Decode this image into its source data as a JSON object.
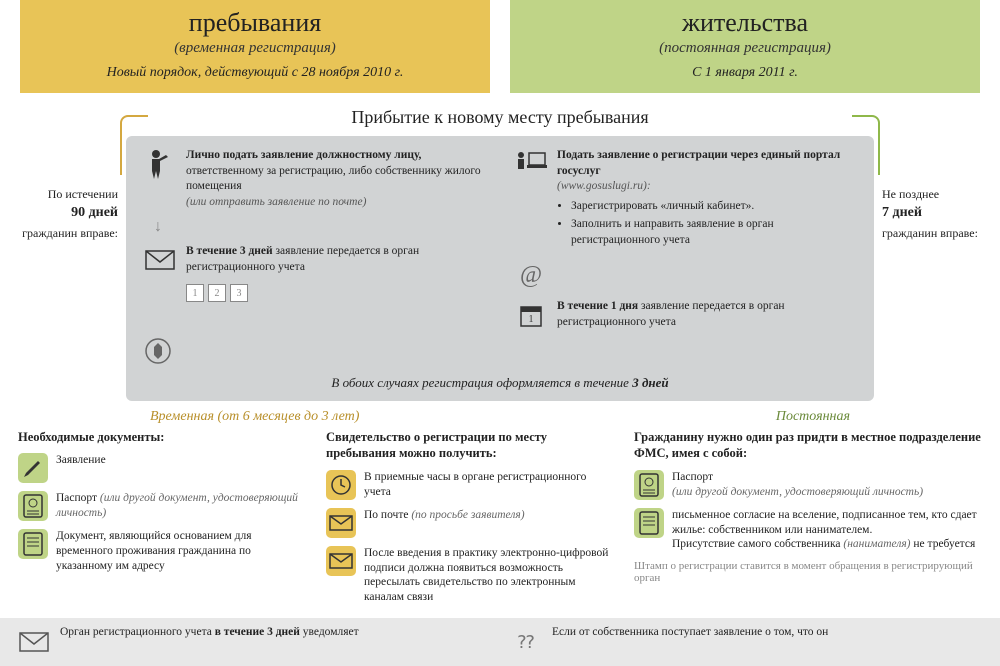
{
  "colors": {
    "yellow": "#e8c457",
    "green": "#bfd487",
    "gray_box": "#d1d3d4",
    "gray_footer": "#e8e8e8",
    "arrow_yellow": "#d4a840",
    "arrow_green": "#8fb84a",
    "text": "#222222",
    "muted": "#666666"
  },
  "headers": {
    "left": {
      "title": "пребывания",
      "subtitle": "(временная регистрация)",
      "date": "Новый порядок, действующий с 28 ноября 2010 г."
    },
    "right": {
      "title": "жительства",
      "subtitle": "(постоянная регистрация)",
      "date": "С 1 января 2011 г."
    }
  },
  "section_title": "Прибытие к новому месту пребывания",
  "side_left": {
    "pre": "По истечении",
    "days": "90 дней",
    "post": "гражданин вправе:"
  },
  "side_right": {
    "pre": "Не позднее",
    "days": "7 дней",
    "post": "гражданин вправе:"
  },
  "gray": {
    "left": {
      "step1_bold": "Лично подать заявление должностному лицу,",
      "step1_rest": "ответственному за регистрацию, либо собственнику жилого помещения",
      "step1_it": "(или отправить заявление по почте)",
      "step2_bold": "В течение 3 дней",
      "step2_rest": "заявление передается в орган регистрационного учета"
    },
    "right": {
      "step1_bold": "Подать заявление о регистрации через единый портал госуслуг",
      "step1_it": "(www.gosuslugi.ru):",
      "bullets": [
        "Зарегистрировать «личный кабинет».",
        "Заполнить и направить заявление в орган регистрационного учета"
      ],
      "step2_bold": "В течение 1 дня",
      "step2_rest": "заявление передается в орган регистрационного учета"
    },
    "footer_pre": "В обоих случаях регистрация оформляется в течение ",
    "footer_bold": "3 дней"
  },
  "branches": {
    "left": "Временная (от 6 месяцев до 3 лет)",
    "right": "Постоянная"
  },
  "col1": {
    "title": "Необходимые документы:",
    "items": [
      {
        "text": "Заявление",
        "note": ""
      },
      {
        "text": "Паспорт ",
        "note": "(или другой документ, удостоверяющий личность)"
      },
      {
        "text": "Документ, являющийся основанием для временного проживания гражданина по указанному им адресу",
        "note": ""
      }
    ]
  },
  "col2": {
    "title": "Свидетельство о регистрации по месту пребывания можно получить:",
    "items": [
      {
        "text": "В приемные часы в органе регистрационного учета",
        "note": ""
      },
      {
        "text": "По почте ",
        "note": "(по просьбе заявителя)"
      },
      {
        "text": "После введения в практику электронно-цифровой подписи должна появиться возможность пересылать свидетельство по электронным каналам связи",
        "note": ""
      }
    ]
  },
  "col3": {
    "title": "Гражданину нужно один раз придти в местное подразделение ФМС, имея с собой:",
    "items": [
      {
        "text": "Паспорт",
        "note": "(или другой документ, удостоверяющий личность)"
      },
      {
        "text": "письменное согласие на вселение, подписанное тем, кто сдает жилье: собственником или нанимателем.",
        "extra": "Присутствие самого собственника ",
        "extra_it": "(нанимателя)",
        "extra2": " не требуется"
      }
    ],
    "stamp": "Штамп о регистрации ставится в момент обращения в регистрирующий орган"
  },
  "footer": {
    "left_pre": "Орган регистрационного учета ",
    "left_bold": "в течение 3 дней",
    "left_post": " уведомляет",
    "right": "Если от собственника поступает заявление о том, что он"
  }
}
